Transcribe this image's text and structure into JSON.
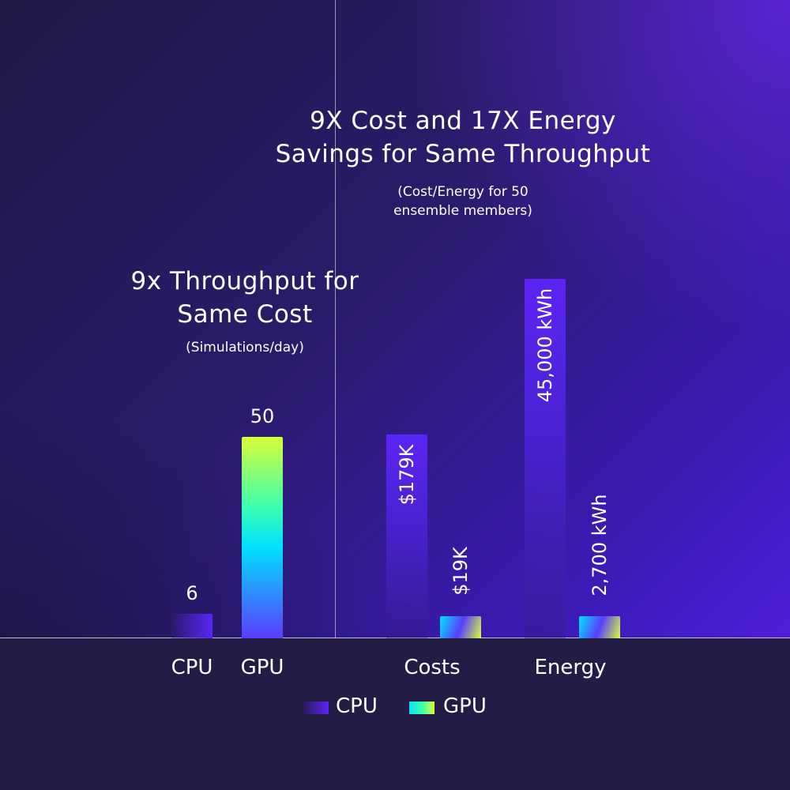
{
  "chart_data": [
    {
      "type": "bar",
      "title": "9x Throughput for Same Cost",
      "subtitle": "(Simulations/day)",
      "categories": [
        "CPU",
        "GPU"
      ],
      "values": [
        6,
        50
      ],
      "value_labels": [
        "6",
        "50"
      ],
      "ylim": [
        0,
        55
      ]
    },
    {
      "type": "bar",
      "title": "9X Cost and 17X Energy Savings for Same Throughput",
      "subtitle": "(Cost/Energy for 50 ensemble members)",
      "categories": [
        "Costs",
        "Energy"
      ],
      "series": [
        {
          "name": "CPU",
          "values": [
            179000,
            45000
          ],
          "labels": [
            "$179K",
            "45,000 kWh"
          ]
        },
        {
          "name": "GPU",
          "values": [
            19000,
            2700
          ],
          "labels": [
            "$19K",
            "2,700 kWh"
          ]
        }
      ]
    }
  ],
  "titles": {
    "main_line1": "9X Cost and 17X Energy",
    "main_line2": "Savings for Same Throughput",
    "main_sub_line1": "(Cost/Energy for 50",
    "main_sub_line2": "ensemble members)",
    "left_line1": "9x Throughput for",
    "left_line2": "Same Cost",
    "left_sub": "(Simulations/day)"
  },
  "legend": {
    "cpu": "CPU",
    "gpu": "GPU"
  },
  "colors": {
    "background_dark": "#221c47",
    "background_violet": "#5a22ee",
    "cpu_bar": "#5b25f5",
    "gpu_bar_top": "#d9ff38",
    "gpu_bar_mid": "#00e0ff"
  }
}
